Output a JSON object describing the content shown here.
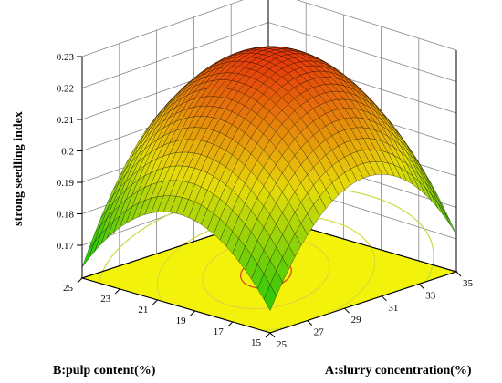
{
  "chart_data": {
    "type": "surface3d",
    "title": "",
    "xlabel": "A:slurry concentration(%)",
    "ylabel": "B:pulp content(%)",
    "zlabel": "strong seedling index",
    "x_ticks": [
      25,
      27,
      29,
      31,
      33,
      35
    ],
    "y_ticks": [
      15,
      17,
      19,
      21,
      23,
      25
    ],
    "z_ticks": [
      0.17,
      0.18,
      0.19,
      0.2,
      0.21,
      0.22,
      0.23
    ],
    "xlim": [
      25,
      35
    ],
    "ylim": [
      15,
      25
    ],
    "zlim": [
      0.17,
      0.23
    ],
    "surface_points": [
      {
        "A": 30.5,
        "B": 20.5,
        "z": 0.228
      },
      {
        "A": 25,
        "B": 25,
        "z": 0.172
      },
      {
        "A": 35,
        "B": 15,
        "z": 0.198
      },
      {
        "A": 25,
        "B": 15,
        "z": 0.166
      },
      {
        "A": 35,
        "B": 25,
        "z": 0.196
      }
    ],
    "contour": {
      "plane_color": "#f2f20a",
      "line_color": "#d04020"
    },
    "colors": {
      "low": "#22c80a",
      "mid": "#dcdc14",
      "high": "#e0320a"
    }
  }
}
